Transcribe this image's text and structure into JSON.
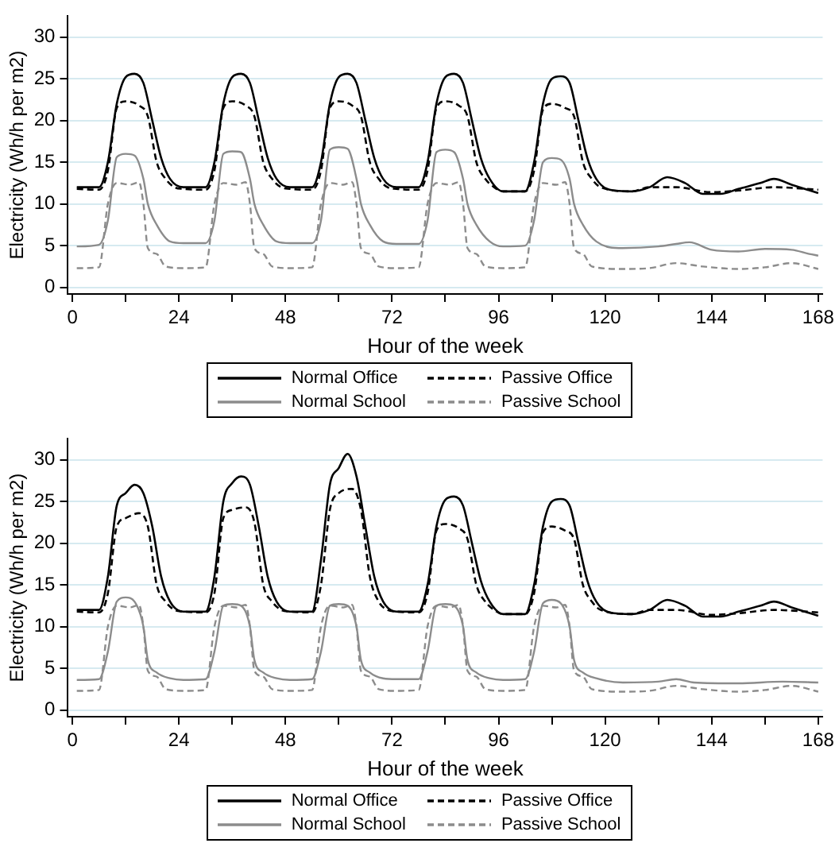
{
  "chart_data": [
    {
      "type": "line",
      "xlabel": "Hour of the week",
      "ylabel": "Electricity (Wh/h per m2)",
      "xlim": [
        -1,
        169
      ],
      "ylim": [
        -0.8,
        32.5
      ],
      "xticks": [
        0,
        {
          "value": 12,
          "label": null
        },
        24,
        {
          "value": 36,
          "label": null
        },
        48,
        {
          "value": 60,
          "label": null
        },
        72,
        {
          "value": 84,
          "label": null
        },
        96,
        {
          "value": 108,
          "label": null
        },
        120,
        {
          "value": 132,
          "label": null
        },
        144,
        {
          "value": 156,
          "label": null
        },
        168
      ],
      "yticks": [
        0,
        5,
        10,
        15,
        20,
        25,
        30
      ],
      "grid": "y",
      "legend": "bottom",
      "marker": "none",
      "series": [
        {
          "name": "Normal Office",
          "color": "#000000",
          "line_style": "solid",
          "x": [
            1,
            6,
            8,
            10,
            12,
            14,
            16,
            18,
            20,
            22,
            25,
            30,
            32,
            34,
            36,
            38,
            40,
            42,
            44,
            46,
            49,
            54,
            56,
            58,
            60,
            62,
            64,
            66,
            68,
            70,
            73,
            78,
            80,
            82,
            84,
            86,
            88,
            90,
            92,
            94,
            97,
            102,
            104,
            106,
            108,
            110,
            112,
            114,
            116,
            118,
            121,
            126,
            130,
            134,
            138,
            142,
            146,
            150,
            155,
            158,
            162,
            168
          ],
          "values": [
            12,
            12,
            15,
            22,
            25.2,
            25.6,
            24.5,
            20,
            15.5,
            13,
            12,
            12,
            15,
            22,
            25.2,
            25.6,
            24.5,
            20,
            15.5,
            13,
            12,
            12,
            15,
            22,
            25.2,
            25.6,
            24.5,
            20,
            15.5,
            13,
            12,
            12,
            15,
            22,
            25.2,
            25.6,
            24.5,
            20,
            15.5,
            13,
            11.5,
            11.5,
            15,
            22,
            25,
            25.3,
            24.5,
            20,
            15.5,
            13,
            11.7,
            11.5,
            12,
            13.2,
            12.5,
            11.2,
            11.2,
            11.8,
            12.5,
            13,
            12.3,
            11.3
          ]
        },
        {
          "name": "Passive Office",
          "color": "#000000",
          "line_style": "dashed",
          "x": [
            1,
            6,
            8,
            10,
            12,
            15,
            17,
            19,
            21,
            23,
            25,
            30,
            32,
            34,
            36,
            39,
            41,
            43,
            45,
            47,
            49,
            54,
            56,
            58,
            60,
            63,
            65,
            67,
            69,
            71,
            73,
            78,
            80,
            82,
            84,
            87,
            89,
            91,
            93,
            95,
            97,
            102,
            104,
            106,
            108,
            111,
            113,
            115,
            117,
            119,
            126,
            130,
            136,
            144,
            150,
            158,
            168
          ],
          "values": [
            11.8,
            11.7,
            14,
            21.5,
            22.3,
            21.8,
            20.5,
            15,
            13,
            12,
            11.8,
            11.7,
            14,
            21.5,
            22.3,
            21.8,
            20.5,
            15,
            13,
            12,
            11.8,
            11.7,
            14,
            21.5,
            22.3,
            21.8,
            20.5,
            15,
            13,
            12,
            11.8,
            11.7,
            14,
            21.5,
            22.3,
            21.8,
            20.5,
            15,
            13,
            12,
            11.5,
            11.5,
            14,
            21.3,
            22,
            21.5,
            20.5,
            15,
            13,
            12,
            11.5,
            12,
            12,
            11.4,
            11.6,
            12,
            11.7
          ]
        },
        {
          "name": "Normal School",
          "color": "#8c8c8c",
          "line_style": "solid",
          "x": [
            1,
            6,
            8,
            10,
            12,
            14,
            16,
            17,
            19,
            22,
            25,
            30,
            32,
            34,
            36,
            38,
            40,
            41,
            43,
            46,
            49,
            54,
            56,
            58,
            60,
            62,
            64,
            65,
            67,
            70,
            73,
            78,
            80,
            82,
            84,
            86,
            88,
            89,
            91,
            94,
            97,
            102,
            104,
            106,
            108,
            110,
            112,
            113,
            115,
            118,
            124,
            132,
            136,
            139,
            144,
            150,
            156,
            162,
            166,
            168
          ],
          "values": [
            4.9,
            5.1,
            8,
            15.6,
            16,
            15.8,
            13,
            10,
            7.5,
            5.5,
            5.3,
            5.3,
            8,
            16,
            16.3,
            16.2,
            13,
            10,
            7.5,
            5.5,
            5.3,
            5.3,
            8,
            16.5,
            16.8,
            16.6,
            13,
            10,
            7.5,
            5.5,
            5.2,
            5.2,
            8,
            16.2,
            16.5,
            16.2,
            13,
            10,
            7.5,
            5.5,
            4.9,
            5,
            8,
            15,
            15.5,
            15.3,
            13,
            10,
            7.5,
            5.5,
            4.7,
            4.9,
            5.2,
            5.4,
            4.5,
            4.3,
            4.6,
            4.5,
            4,
            3.8
          ]
        },
        {
          "name": "Passive School",
          "color": "#8c8c8c",
          "line_style": "dashed",
          "x": [
            1,
            6,
            8,
            10,
            13,
            15,
            16,
            17,
            19,
            21,
            25,
            30,
            32,
            34,
            37,
            39,
            40,
            41,
            43,
            45,
            49,
            54,
            56,
            58,
            61,
            63,
            64,
            65,
            67,
            69,
            73,
            78,
            80,
            82,
            85,
            87,
            88,
            89,
            91,
            93,
            97,
            102,
            104,
            106,
            109,
            111,
            112,
            113,
            115,
            117,
            124,
            130,
            136,
            142,
            150,
            156,
            162,
            168
          ],
          "values": [
            2.3,
            2.4,
            10,
            12.5,
            12.3,
            12.6,
            10,
            4.7,
            4,
            2.5,
            2.3,
            2.4,
            10,
            12.5,
            12.3,
            12.6,
            10,
            4.7,
            4,
            2.5,
            2.3,
            2.4,
            10,
            12.5,
            12.3,
            12.6,
            10,
            4.7,
            4,
            2.5,
            2.3,
            2.4,
            10,
            12.5,
            12.3,
            12.6,
            10,
            4.7,
            4,
            2.5,
            2.3,
            2.4,
            10,
            12.5,
            12.3,
            12.6,
            10,
            4.7,
            4,
            2.5,
            2.2,
            2.3,
            2.9,
            2.5,
            2.2,
            2.4,
            2.9,
            2.2
          ]
        }
      ]
    },
    {
      "type": "line",
      "xlabel": "Hour of the week",
      "ylabel": "Electricity (Wh/h per m2)",
      "xlim": [
        -1,
        169
      ],
      "ylim": [
        -0.8,
        32.5
      ],
      "xticks": [
        0,
        {
          "value": 12,
          "label": null
        },
        24,
        {
          "value": 36,
          "label": null
        },
        48,
        {
          "value": 60,
          "label": null
        },
        72,
        {
          "value": 84,
          "label": null
        },
        96,
        {
          "value": 108,
          "label": null
        },
        120,
        {
          "value": 132,
          "label": null
        },
        144,
        {
          "value": 156,
          "label": null
        },
        168
      ],
      "yticks": [
        0,
        5,
        10,
        15,
        20,
        25,
        30
      ],
      "grid": "y",
      "legend": "bottom",
      "marker": "none",
      "series": [
        {
          "name": "Normal Office",
          "color": "#000000",
          "line_style": "solid",
          "x": [
            1,
            6,
            8,
            10,
            12,
            14,
            16,
            18,
            20,
            22,
            25,
            30,
            32,
            34,
            36,
            38,
            40,
            42,
            44,
            46,
            49,
            54,
            56,
            58,
            60,
            62,
            64,
            66,
            68,
            70,
            73,
            78,
            80,
            82,
            84,
            86,
            88,
            90,
            92,
            94,
            97,
            102,
            104,
            106,
            108,
            110,
            112,
            114,
            116,
            118,
            121,
            126,
            130,
            134,
            138,
            142,
            146,
            150,
            155,
            158,
            162,
            168
          ],
          "values": [
            12,
            12,
            16,
            24.5,
            26,
            27,
            26,
            22,
            16,
            13,
            11.8,
            11.8,
            16,
            25,
            27.2,
            28,
            27,
            22,
            16,
            13,
            11.8,
            11.8,
            18,
            27,
            29,
            30.7,
            28,
            22,
            16,
            13,
            11.8,
            11.8,
            15,
            22,
            25.2,
            25.6,
            24.5,
            20,
            15.5,
            13,
            11.5,
            11.5,
            15,
            22,
            25,
            25.3,
            24.5,
            20,
            15.5,
            13,
            11.7,
            11.5,
            12,
            13.2,
            12.5,
            11.2,
            11.2,
            11.8,
            12.5,
            13,
            12.3,
            11.3
          ]
        },
        {
          "name": "Passive Office",
          "color": "#000000",
          "line_style": "dashed",
          "x": [
            1,
            6,
            8,
            10,
            12,
            15,
            17,
            19,
            21,
            23,
            25,
            30,
            32,
            34,
            36,
            39,
            41,
            43,
            45,
            47,
            49,
            54,
            56,
            58,
            60,
            63,
            65,
            67,
            69,
            71,
            73,
            78,
            80,
            82,
            84,
            87,
            89,
            91,
            93,
            95,
            97,
            102,
            104,
            106,
            108,
            111,
            113,
            115,
            117,
            119,
            126,
            130,
            136,
            144,
            150,
            158,
            168
          ],
          "values": [
            11.8,
            11.7,
            14,
            22,
            23,
            23.6,
            22,
            15,
            13,
            12,
            11.8,
            11.7,
            14,
            23,
            24,
            24.3,
            22.5,
            15,
            13,
            12,
            11.8,
            11.7,
            15,
            24,
            26,
            26.5,
            24,
            16,
            13,
            12,
            11.8,
            11.7,
            14,
            21.5,
            22.3,
            21.8,
            20.5,
            15,
            13,
            12,
            11.5,
            11.5,
            14,
            21.3,
            22,
            21.5,
            20.5,
            15,
            13,
            12,
            11.5,
            12,
            12,
            11.4,
            11.6,
            12,
            11.7
          ]
        },
        {
          "name": "Normal School",
          "color": "#8c8c8c",
          "line_style": "solid",
          "x": [
            1,
            6,
            8,
            10,
            12,
            14,
            16,
            17,
            19,
            22,
            25,
            30,
            32,
            34,
            36,
            38,
            40,
            41,
            43,
            46,
            49,
            54,
            56,
            58,
            60,
            62,
            64,
            65,
            67,
            70,
            73,
            78,
            80,
            82,
            84,
            86,
            88,
            89,
            91,
            94,
            97,
            102,
            104,
            106,
            108,
            110,
            112,
            113,
            115,
            118,
            124,
            132,
            136,
            140,
            150,
            160,
            168
          ],
          "values": [
            3.6,
            3.7,
            7,
            13,
            13.5,
            13,
            10,
            6,
            4.5,
            3.8,
            3.6,
            3.7,
            7,
            12.5,
            12.7,
            12.5,
            10,
            6,
            4.5,
            3.8,
            3.6,
            3.7,
            7,
            12.5,
            12.7,
            12.5,
            10,
            6,
            4.5,
            3.8,
            3.7,
            3.7,
            7,
            12.5,
            12.7,
            12.5,
            10,
            6,
            4.5,
            3.8,
            3.6,
            3.7,
            7,
            12.8,
            13.2,
            12.8,
            10,
            6,
            4.5,
            3.8,
            3.3,
            3.4,
            3.7,
            3.3,
            3.2,
            3.4,
            3.3
          ]
        },
        {
          "name": "Passive School",
          "color": "#8c8c8c",
          "line_style": "dashed",
          "x": [
            1,
            6,
            8,
            10,
            13,
            15,
            16,
            17,
            19,
            21,
            25,
            30,
            32,
            34,
            37,
            39,
            40,
            41,
            43,
            45,
            49,
            54,
            56,
            58,
            61,
            63,
            64,
            65,
            67,
            69,
            73,
            78,
            80,
            82,
            85,
            87,
            88,
            89,
            91,
            93,
            97,
            102,
            104,
            106,
            109,
            111,
            112,
            113,
            115,
            117,
            124,
            130,
            136,
            142,
            150,
            156,
            162,
            168
          ],
          "values": [
            2.3,
            2.4,
            10,
            12.5,
            12.3,
            12.6,
            10,
            4.7,
            4,
            2.5,
            2.3,
            2.4,
            10,
            12.5,
            12.3,
            12.6,
            10,
            4.7,
            4,
            2.5,
            2.3,
            2.4,
            10,
            12.5,
            12.3,
            12.6,
            10,
            4.7,
            4,
            2.5,
            2.3,
            2.4,
            10,
            12.5,
            12.3,
            12.6,
            10,
            4.7,
            4,
            2.5,
            2.3,
            2.4,
            10,
            12.5,
            12.3,
            12.6,
            10,
            4.7,
            4,
            2.5,
            2.2,
            2.3,
            2.9,
            2.5,
            2.2,
            2.4,
            2.9,
            2.2
          ]
        }
      ]
    }
  ]
}
